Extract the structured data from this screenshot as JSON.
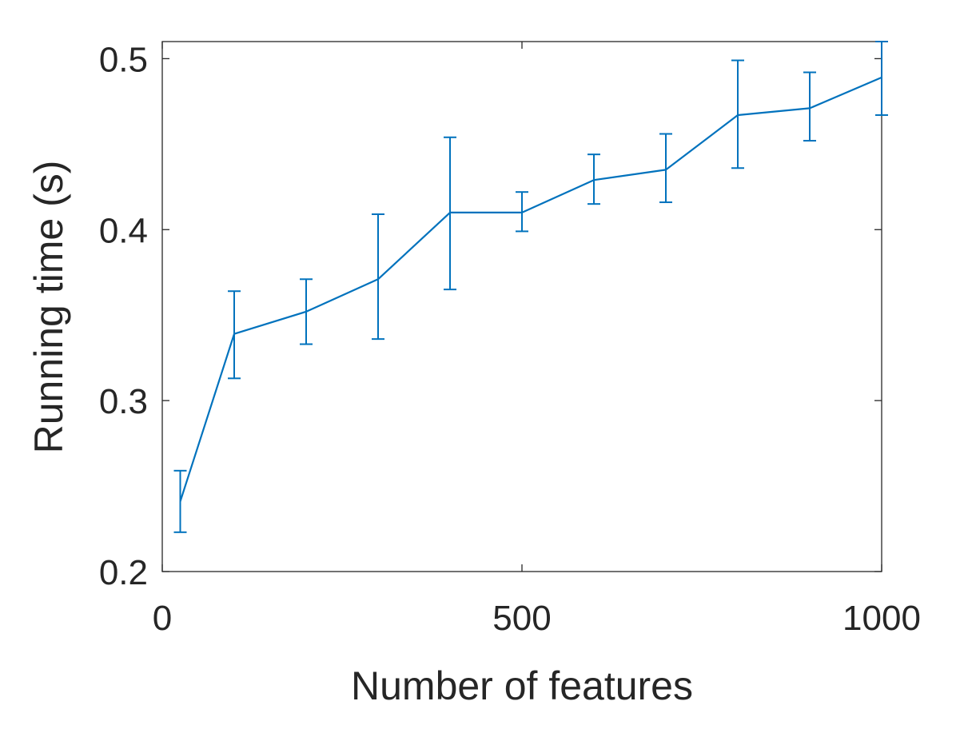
{
  "chart_data": {
    "type": "line",
    "title": "",
    "xlabel": "Number of features",
    "ylabel": "Running time (s)",
    "xlim": [
      0,
      1000
    ],
    "ylim": [
      0.2,
      0.51
    ],
    "xticks": [
      0,
      500,
      1000
    ],
    "xtick_labels": [
      "0",
      "500",
      "1000"
    ],
    "yticks": [
      0.2,
      0.3,
      0.4,
      0.5
    ],
    "ytick_labels": [
      "0.2",
      "0.3",
      "0.4",
      "0.5"
    ],
    "grid": false,
    "legend": "none",
    "box": true,
    "series": [
      {
        "color": "#0072BD",
        "x": [
          25,
          100,
          200,
          300,
          400,
          500,
          600,
          700,
          800,
          900,
          1000
        ],
        "y": [
          0.241,
          0.339,
          0.352,
          0.371,
          0.41,
          0.41,
          0.429,
          0.435,
          0.467,
          0.471,
          0.489
        ],
        "err_low": [
          0.223,
          0.313,
          0.333,
          0.336,
          0.365,
          0.399,
          0.415,
          0.416,
          0.436,
          0.452,
          0.467
        ],
        "err_high": [
          0.259,
          0.364,
          0.371,
          0.409,
          0.454,
          0.422,
          0.444,
          0.456,
          0.499,
          0.492,
          0.513
        ]
      }
    ]
  }
}
